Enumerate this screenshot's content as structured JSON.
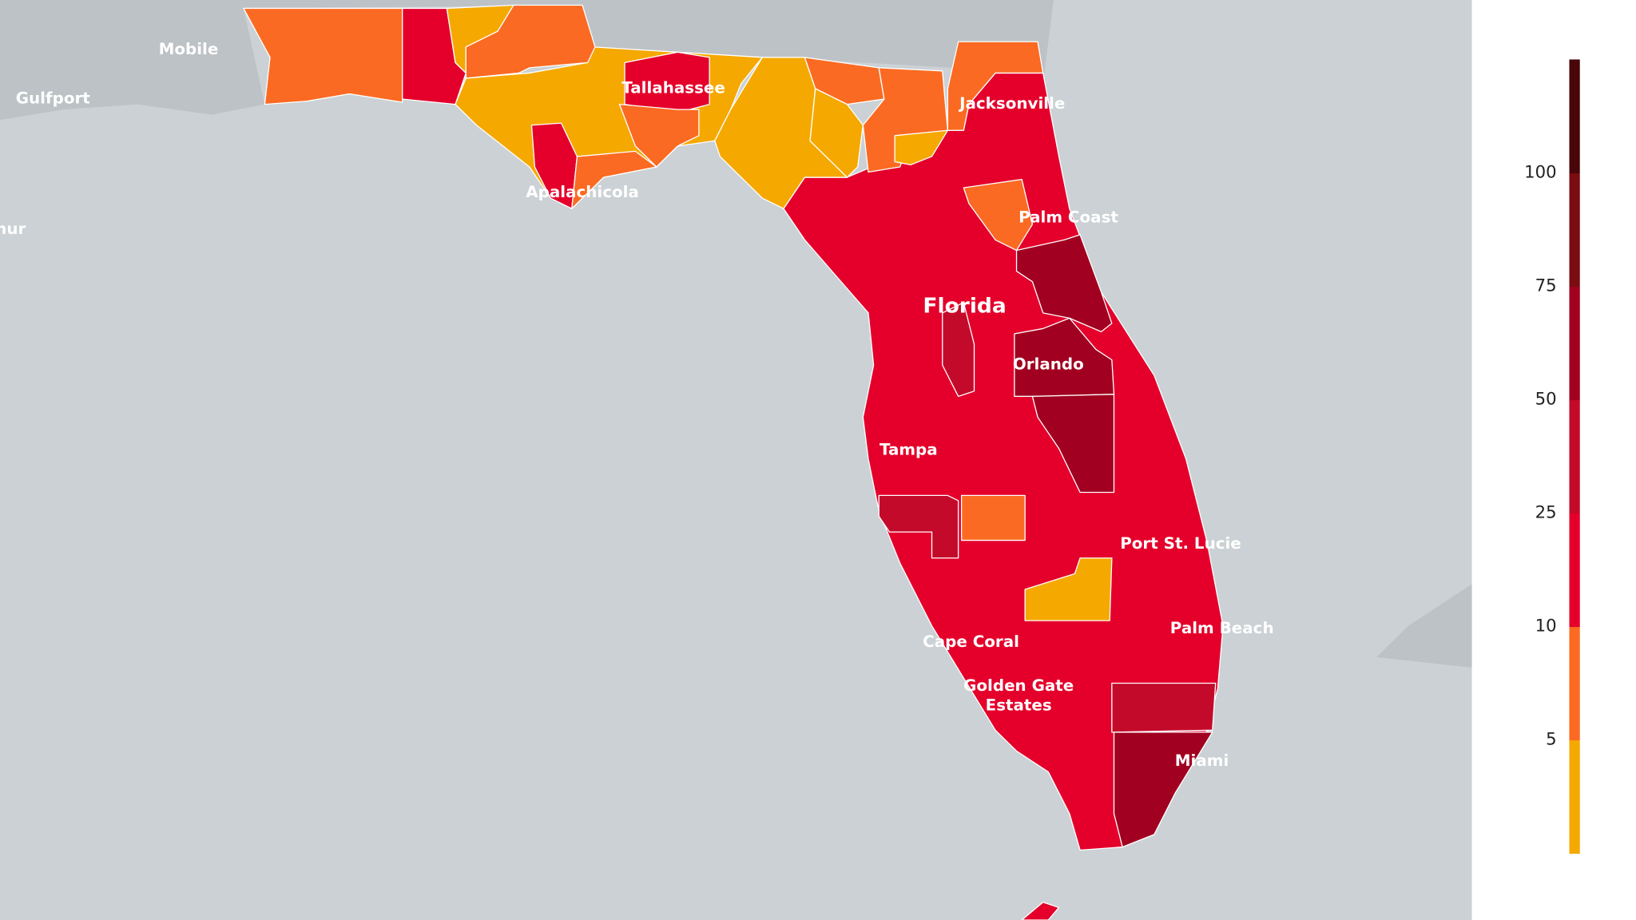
{
  "map": {
    "labels": [
      "Mobile",
      "Gulfport",
      "hur",
      "Tallahassee",
      "Jacksonville",
      "Apalachicola",
      "Palm Coast",
      "Florida",
      "Orlando",
      "Tampa",
      "Port St. Lucie",
      "Palm Beach",
      "Cape Coral",
      "Golden Gate",
      "Estates",
      "Miami"
    ]
  },
  "legend": {
    "ticks": [
      5,
      10,
      25,
      50,
      75,
      100
    ],
    "colors": [
      "#f5a800",
      "#fb6a22",
      "#e4002b",
      "#c40a2a",
      "#a10020",
      "#7a0d12",
      "#480609"
    ]
  }
}
